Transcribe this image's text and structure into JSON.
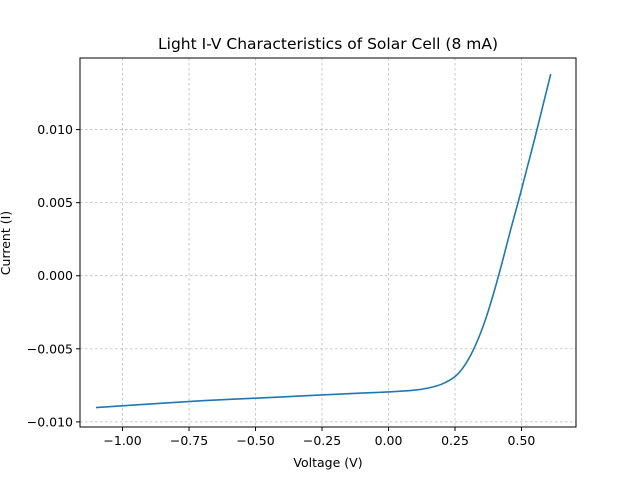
{
  "chart_data": {
    "type": "line",
    "title": "Light I-V Characteristics of Solar Cell (8 mA)",
    "xlabel": "Voltage (V)",
    "ylabel": "Current (I)",
    "xlim": [
      -1.16,
      0.705
    ],
    "ylim": [
      -0.01035,
      0.0149
    ],
    "x_ticks": [
      -1.0,
      -0.75,
      -0.5,
      -0.25,
      0.0,
      0.25,
      0.5
    ],
    "x_tick_labels": [
      "−1.00",
      "−0.75",
      "−0.50",
      "−0.25",
      "0.00",
      "0.25",
      "0.50"
    ],
    "y_ticks": [
      -0.01,
      -0.005,
      0.0,
      0.005,
      0.01
    ],
    "y_tick_labels": [
      "−0.010",
      "−0.005",
      "0.000",
      "0.005",
      "0.010"
    ],
    "grid": true,
    "series": [
      {
        "color": "#1f77b4",
        "x": [
          -1.1,
          -0.9,
          -0.7,
          -0.5,
          -0.3,
          -0.1,
          0.0,
          0.1,
          0.15,
          0.2,
          0.25,
          0.28,
          0.31,
          0.34,
          0.37,
          0.4,
          0.43,
          0.46,
          0.49,
          0.52,
          0.55,
          0.58,
          0.61
        ],
        "y": [
          -0.00902,
          -0.00878,
          -0.00855,
          -0.00838,
          -0.0082,
          -0.00803,
          -0.00795,
          -0.00782,
          -0.00768,
          -0.00742,
          -0.0069,
          -0.0063,
          -0.0054,
          -0.0042,
          -0.0027,
          -0.0009,
          0.0011,
          0.0032,
          0.0052,
          0.0073,
          0.0094,
          0.0116,
          0.0138
        ]
      }
    ]
  }
}
